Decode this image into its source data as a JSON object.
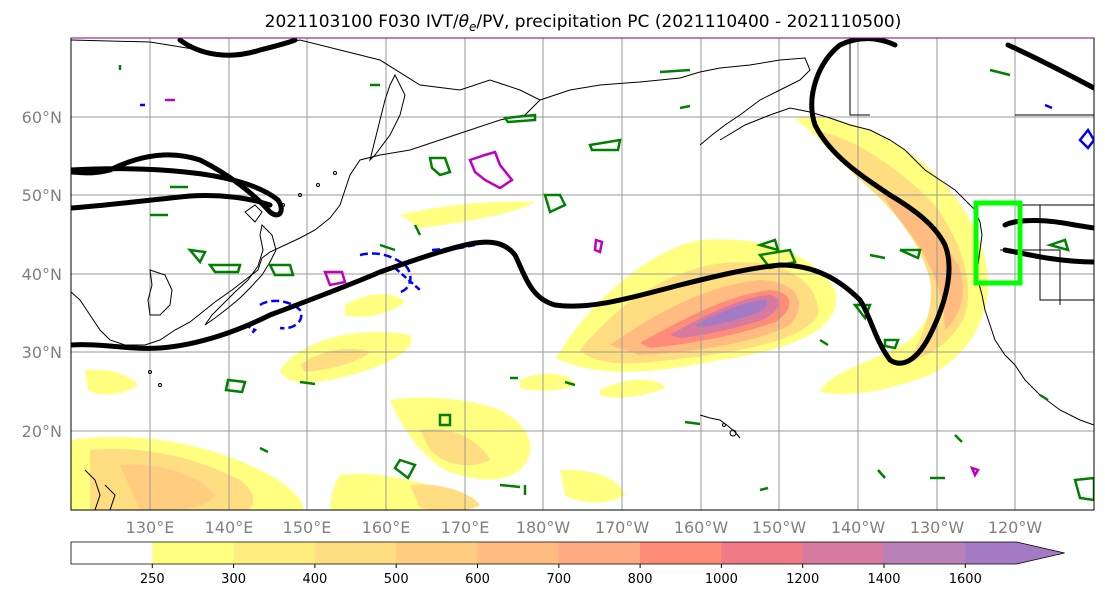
{
  "title": {
    "main": "2021103100 F030 IVT/",
    "theta": "θ",
    "sub": "e",
    "rest": "/PV, precipitation PC (2021110400 - 2021110500)"
  },
  "map": {
    "lat_labels": [
      "20°N",
      "30°N",
      "40°N",
      "50°N",
      "60°N"
    ],
    "lon_labels": [
      "130°E",
      "140°E",
      "150°E",
      "160°E",
      "170°E",
      "180°W",
      "170°W",
      "160°W",
      "150°W",
      "140°W",
      "130°W",
      "120°W"
    ],
    "extent": {
      "lon_min": 120,
      "lon_max": 250,
      "lat_min": 10,
      "lat_max": 70
    }
  },
  "colorbar": {
    "levels": [
      "250",
      "300",
      "400",
      "500",
      "600",
      "700",
      "800",
      "1000",
      "1200",
      "1400",
      "1600"
    ],
    "colors": [
      "#ffffff",
      "#ffff80",
      "#ffee80",
      "#ffdd80",
      "#ffcc80",
      "#ffbb80",
      "#ffaa80",
      "#ff8c78",
      "#f07a85",
      "#d67aa0",
      "#b882b8",
      "#a47ac4"
    ]
  },
  "colors": {
    "ivt_contour": "#000000",
    "theta_e_contour": "#008000",
    "pv_contour_pos": "#c000c0",
    "pv_contour_neg": "#0000ff",
    "target_box": "#00ff00"
  }
}
